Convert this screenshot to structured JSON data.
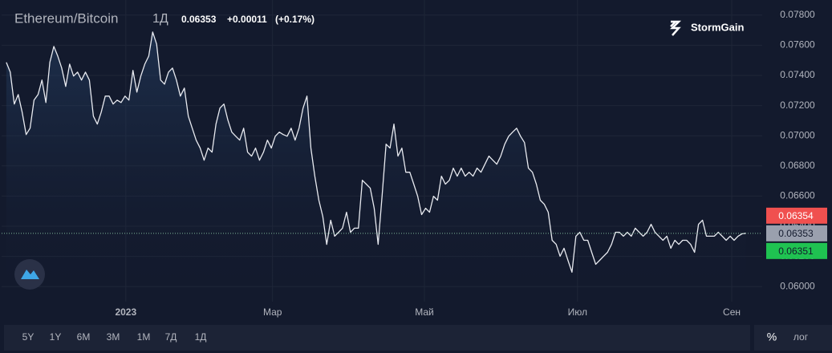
{
  "chart_data": {
    "type": "line",
    "title": "Ethereum/Bitcoin",
    "interval": "1Д",
    "quote": {
      "last": "0.06353",
      "change": "+0.00011",
      "change_pct": "(+0.17%)"
    },
    "brand": "StormGain",
    "color": "#e8eaf0",
    "x": [
      0,
      1,
      2,
      3,
      4,
      5,
      6,
      7,
      8,
      9,
      10,
      11,
      12,
      13,
      14,
      15,
      16,
      17,
      18,
      19,
      20,
      21,
      22,
      23,
      24,
      25,
      26,
      27,
      28,
      29,
      30,
      31,
      32,
      33,
      34,
      35,
      36,
      37,
      38,
      39,
      40,
      41,
      42,
      43,
      44,
      45,
      46,
      47,
      48,
      49,
      50,
      51,
      52,
      53,
      54,
      55,
      56,
      57,
      58,
      59,
      60,
      61,
      62,
      63,
      64,
      65,
      66,
      67,
      68,
      69,
      70,
      71,
      72,
      73,
      74,
      75,
      76,
      77,
      78,
      79,
      80,
      81,
      82,
      83,
      84,
      85,
      86,
      87,
      88,
      89,
      90,
      91,
      92,
      93,
      94,
      95,
      96,
      97,
      98,
      99,
      100,
      101,
      102,
      103,
      104,
      105,
      106,
      107,
      108,
      109,
      110,
      111,
      112,
      113,
      114,
      115,
      116,
      117,
      118,
      119,
      120,
      121,
      122,
      123,
      124,
      125,
      126,
      127,
      128,
      129,
      130,
      131,
      132,
      133,
      134,
      135,
      136,
      137,
      138,
      139,
      140,
      141,
      142,
      143,
      144,
      145,
      146,
      147,
      148,
      149,
      150,
      151,
      152,
      153,
      154,
      155,
      156,
      157,
      158,
      159,
      160,
      161,
      162,
      163,
      164,
      165,
      166,
      167,
      168,
      169,
      170,
      171,
      172,
      173,
      174,
      175,
      176,
      177,
      178,
      179,
      180,
      181,
      182,
      183,
      184,
      185,
      186,
      187
    ],
    "values": [
      0.07486,
      0.07422,
      0.0721,
      0.07273,
      0.07157,
      0.07008,
      0.0705,
      0.07236,
      0.07273,
      0.07369,
      0.0722,
      0.07486,
      0.07592,
      0.07528,
      0.07449,
      0.07327,
      0.07475,
      0.07396,
      0.07422,
      0.07369,
      0.07422,
      0.07369,
      0.0713,
      0.07077,
      0.07157,
      0.07263,
      0.07263,
      0.0721,
      0.07236,
      0.0722,
      0.07263,
      0.07236,
      0.07433,
      0.07289,
      0.07396,
      0.07475,
      0.07528,
      0.07688,
      0.07608,
      0.07369,
      0.07342,
      0.07422,
      0.07449,
      0.07369,
      0.07263,
      0.07316,
      0.0713,
      0.0705,
      0.06971,
      0.06918,
      0.06838,
      0.06918,
      0.06891,
      0.07077,
      0.07183,
      0.0721,
      0.07104,
      0.07024,
      0.06997,
      0.06971,
      0.0705,
      0.06891,
      0.06865,
      0.06918,
      0.06838,
      0.06891,
      0.06971,
      0.06918,
      0.06997,
      0.07024,
      0.07008,
      0.06997,
      0.0705,
      0.06971,
      0.0705,
      0.07183,
      0.07263,
      0.06918,
      0.06732,
      0.06573,
      0.06466,
      0.0628,
      0.0644,
      0.06334,
      0.0636,
      0.06387,
      0.06493,
      0.0636,
      0.06387,
      0.06387,
      0.06705,
      0.06679,
      0.06652,
      0.06519,
      0.0628,
      0.06599,
      0.06944,
      0.06918,
      0.07077,
      0.06865,
      0.06918,
      0.06758,
      0.06758,
      0.06679,
      0.06599,
      0.06477,
      0.06519,
      0.06493,
      0.06599,
      0.06573,
      0.06732,
      0.06679,
      0.06705,
      0.06785,
      0.06732,
      0.06785,
      0.06732,
      0.06758,
      0.06732,
      0.06785,
      0.06758,
      0.06811,
      0.06865,
      0.06838,
      0.06811,
      0.06865,
      0.06944,
      0.06997,
      0.07024,
      0.0705,
      0.06997,
      0.06955,
      0.06785,
      0.06758,
      0.06679,
      0.06573,
      0.06546,
      0.06493,
      0.06307,
      0.0628,
      0.06201,
      0.06254,
      0.06174,
      0.06095,
      0.06334,
      0.0636,
      0.06307,
      0.06307,
      0.06227,
      0.06148,
      0.06174,
      0.06201,
      0.06227,
      0.0628,
      0.0636,
      0.0636,
      0.06334,
      0.0636,
      0.06334,
      0.06387,
      0.0636,
      0.06334,
      0.0636,
      0.06413,
      0.0636,
      0.06334,
      0.06307,
      0.06334,
      0.06254,
      0.06307,
      0.0628,
      0.06307,
      0.06307,
      0.0628,
      0.06227,
      0.06413,
      0.0644,
      0.06334,
      0.06334,
      0.06334,
      0.0636,
      0.06334,
      0.06307,
      0.06334,
      0.06307,
      0.06334,
      0.0635,
      0.06353
    ],
    "xlim": [
      -1.2,
      191.1
    ],
    "xticks": [
      {
        "value": 30.2,
        "label": "2023"
      },
      {
        "value": 67.3,
        "label": "Мар"
      },
      {
        "value": 105.7,
        "label": "Май"
      },
      {
        "value": 144.4,
        "label": "Июл"
      },
      {
        "value": 183.4,
        "label": "Сен"
      }
    ],
    "ylim": [
      0.059,
      0.079
    ],
    "yticks": [
      {
        "value": 0.06,
        "label": "0.06000"
      },
      {
        "value": 0.062,
        "label": "0.06200"
      },
      {
        "value": 0.064,
        "label": "0.06400"
      },
      {
        "value": 0.066,
        "label": "0.06600"
      },
      {
        "value": 0.068,
        "label": "0.06800"
      },
      {
        "value": 0.07,
        "label": "0.07000"
      },
      {
        "value": 0.072,
        "label": "0.07200"
      },
      {
        "value": 0.074,
        "label": "0.07400"
      },
      {
        "value": 0.076,
        "label": "0.07600"
      },
      {
        "value": 0.078,
        "label": "0.07800"
      }
    ],
    "grid": true,
    "price_marks": {
      "ask": 0.06354,
      "last": 0.06353,
      "bid": 0.06351
    },
    "ranges": [
      "5Y",
      "1Y",
      "6M",
      "3M",
      "1M",
      "7Д",
      "1Д"
    ],
    "scale_options": [
      "%",
      "лог"
    ]
  }
}
